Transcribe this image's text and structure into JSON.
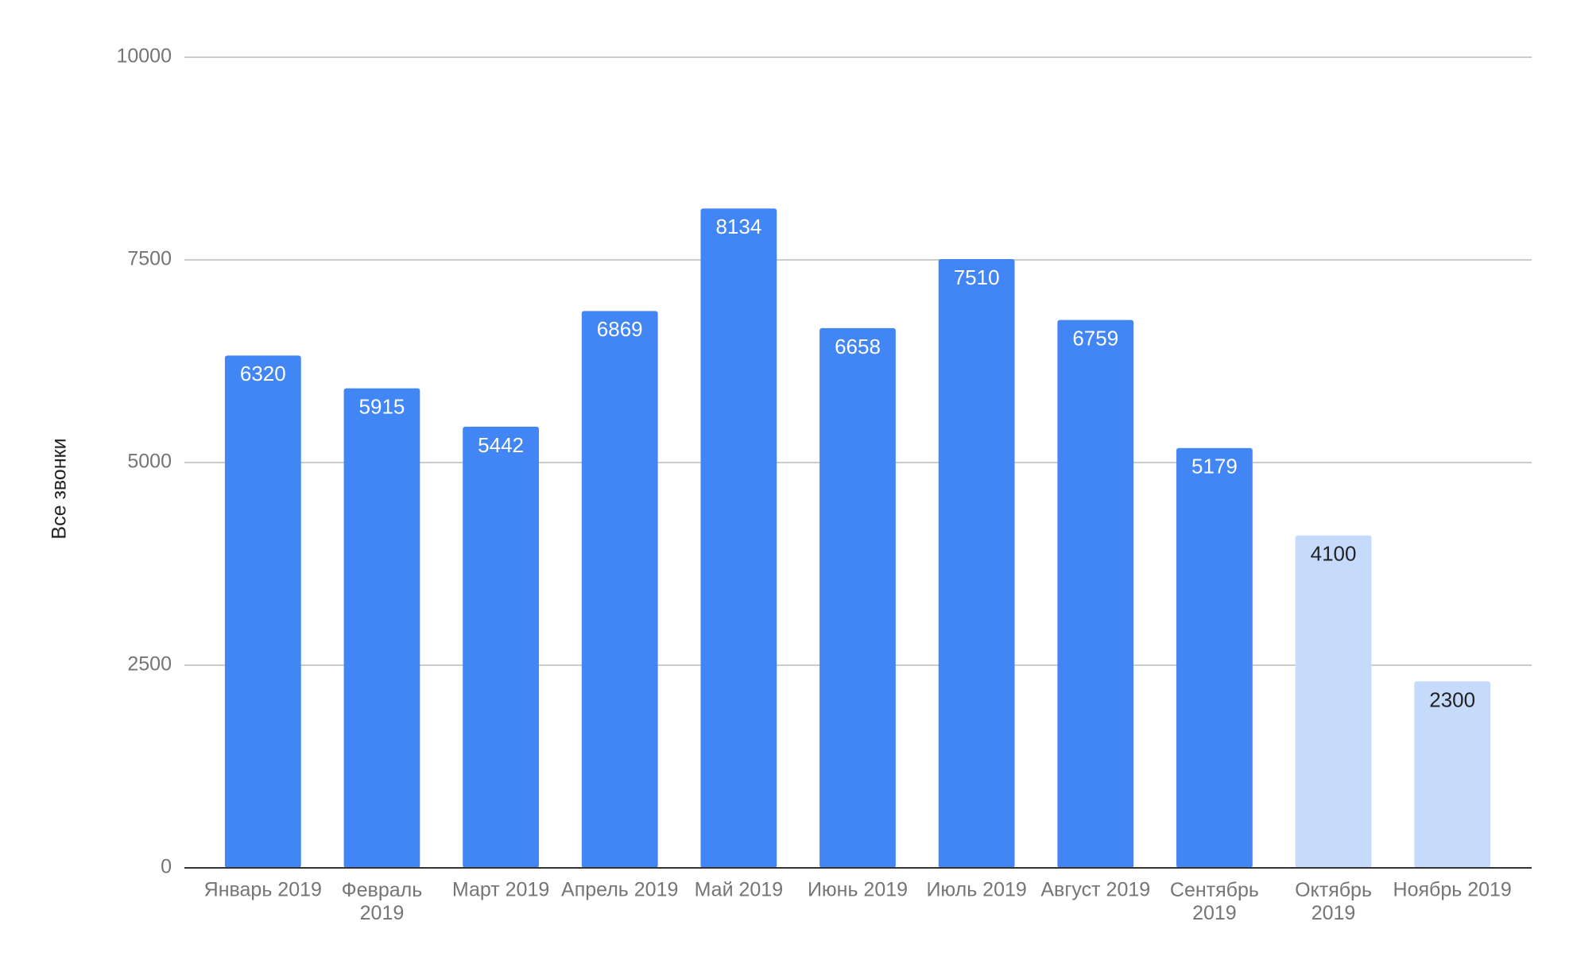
{
  "chart_data": {
    "type": "bar",
    "y_axis_label": "Все звонки",
    "categories": [
      "Январь 2019",
      "Февраль 2019",
      "Март 2019",
      "Апрель 2019",
      "Май 2019",
      "Июнь 2019",
      "Июль 2019",
      "Август 2019",
      "Сентябрь 2019",
      "Октябрь 2019",
      "Ноябрь 2019"
    ],
    "values": [
      6320,
      5915,
      5442,
      6869,
      8134,
      6658,
      7510,
      6759,
      5179,
      4100,
      2300
    ],
    "colors": [
      "#4285f4",
      "#4285f4",
      "#4285f4",
      "#4285f4",
      "#4285f4",
      "#4285f4",
      "#4285f4",
      "#4285f4",
      "#4285f4",
      "#c6dafc",
      "#c6dafc"
    ],
    "ylim": [
      0,
      10000
    ],
    "yticks": [
      0,
      2500,
      5000,
      7500,
      10000
    ],
    "grid": true
  }
}
